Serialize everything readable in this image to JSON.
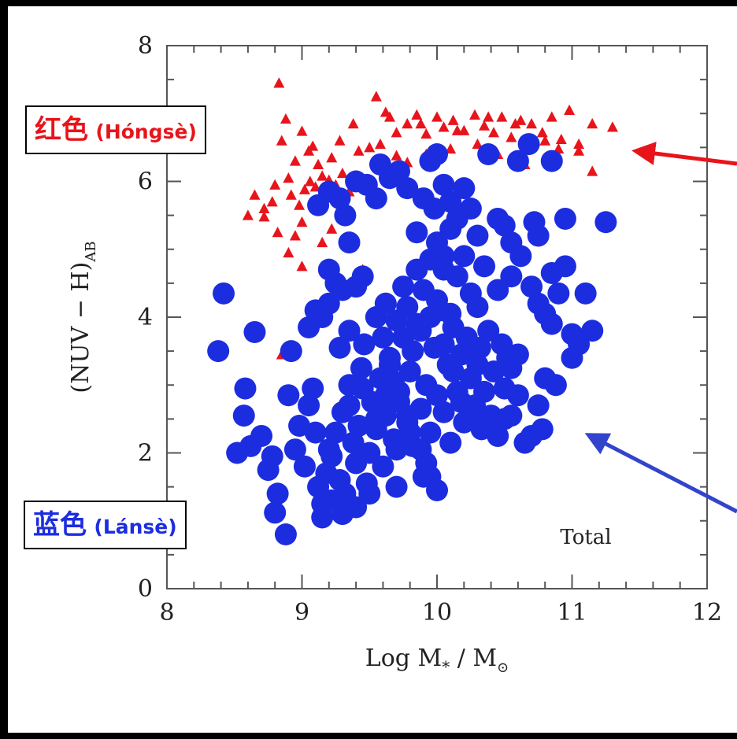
{
  "chart_data": {
    "type": "scatter",
    "xlabel_main": "Log M",
    "xlabel_sub": "*",
    "xlabel_sep": " / ",
    "xlabel_unit": "M",
    "xlabel_unit_sub": "⊙",
    "ylabel_main": "(NUV − H)",
    "ylabel_sub": "AB",
    "xlim": [
      8,
      12
    ],
    "ylim": [
      0,
      8
    ],
    "xticks": [
      "8",
      "9",
      "10",
      "11",
      "12"
    ],
    "yticks": [
      "0",
      "2",
      "4",
      "6",
      "8"
    ],
    "panel_label": "Total",
    "grid": false,
    "colors": {
      "red": "#e8141b",
      "blue": "#1c2de0"
    },
    "series": [
      {
        "marker": "triangle",
        "color": "#e8141b",
        "points": [
          [
            8.83,
            7.45
          ],
          [
            8.88,
            6.92
          ],
          [
            9.0,
            6.74
          ],
          [
            9.08,
            6.52
          ],
          [
            9.28,
            6.6
          ],
          [
            9.38,
            6.85
          ],
          [
            9.42,
            6.45
          ],
          [
            9.55,
            7.25
          ],
          [
            9.65,
            6.95
          ],
          [
            9.7,
            6.72
          ],
          [
            9.78,
            6.85
          ],
          [
            9.85,
            6.98
          ],
          [
            9.92,
            6.7
          ],
          [
            10.0,
            6.95
          ],
          [
            10.05,
            6.8
          ],
          [
            10.12,
            6.9
          ],
          [
            10.2,
            6.75
          ],
          [
            10.28,
            6.98
          ],
          [
            10.35,
            6.82
          ],
          [
            10.42,
            6.72
          ],
          [
            10.48,
            6.95
          ],
          [
            10.55,
            6.65
          ],
          [
            10.62,
            6.9
          ],
          [
            10.7,
            6.85
          ],
          [
            10.78,
            6.72
          ],
          [
            10.85,
            6.95
          ],
          [
            10.92,
            6.62
          ],
          [
            10.98,
            7.05
          ],
          [
            11.05,
            6.55
          ],
          [
            11.15,
            6.85
          ],
          [
            11.3,
            6.8
          ],
          [
            11.15,
            6.15
          ],
          [
            11.05,
            6.45
          ],
          [
            9.62,
            7.02
          ],
          [
            9.88,
            6.85
          ],
          [
            10.15,
            6.75
          ],
          [
            10.38,
            6.95
          ],
          [
            10.58,
            6.85
          ],
          [
            10.8,
            6.6
          ],
          [
            9.58,
            6.55
          ],
          [
            9.92,
            6.4
          ],
          [
            8.65,
            5.8
          ],
          [
            8.6,
            5.5
          ],
          [
            8.72,
            5.6
          ],
          [
            8.78,
            5.7
          ],
          [
            8.8,
            5.95
          ],
          [
            8.9,
            6.05
          ],
          [
            8.92,
            5.8
          ],
          [
            8.98,
            5.65
          ],
          [
            9.02,
            5.88
          ],
          [
            9.06,
            6.0
          ],
          [
            9.1,
            5.92
          ],
          [
            9.15,
            6.08
          ],
          [
            9.2,
            6.02
          ],
          [
            9.25,
            5.95
          ],
          [
            9.3,
            6.12
          ],
          [
            9.35,
            5.85
          ],
          [
            9.12,
            6.25
          ],
          [
            9.22,
            6.35
          ],
          [
            8.72,
            5.48
          ],
          [
            8.82,
            5.25
          ],
          [
            8.95,
            5.2
          ],
          [
            9.0,
            5.4
          ],
          [
            9.15,
            5.1
          ],
          [
            9.22,
            5.3
          ],
          [
            8.9,
            4.95
          ],
          [
            9.0,
            4.75
          ],
          [
            9.45,
            4.7
          ],
          [
            9.4,
            4.45
          ],
          [
            8.95,
            6.3
          ],
          [
            8.85,
            6.6
          ],
          [
            9.05,
            6.45
          ],
          [
            9.5,
            6.5
          ],
          [
            9.7,
            6.38
          ],
          [
            9.78,
            6.28
          ],
          [
            10.1,
            6.48
          ],
          [
            10.3,
            6.55
          ],
          [
            10.45,
            6.4
          ],
          [
            10.65,
            6.25
          ],
          [
            10.9,
            6.48
          ],
          [
            8.85,
            3.45
          ]
        ]
      },
      {
        "marker": "circle",
        "color": "#1c2de0",
        "points": [
          [
            8.42,
            4.35
          ],
          [
            8.38,
            3.5
          ],
          [
            8.65,
            3.78
          ],
          [
            8.58,
            2.95
          ],
          [
            8.57,
            2.55
          ],
          [
            8.52,
            2.0
          ],
          [
            8.62,
            2.1
          ],
          [
            8.7,
            2.25
          ],
          [
            8.78,
            1.95
          ],
          [
            8.75,
            1.75
          ],
          [
            8.82,
            1.4
          ],
          [
            8.8,
            1.12
          ],
          [
            8.88,
            0.8
          ],
          [
            8.9,
            2.85
          ],
          [
            8.92,
            3.5
          ],
          [
            8.95,
            2.05
          ],
          [
            8.98,
            2.4
          ],
          [
            9.02,
            1.8
          ],
          [
            9.05,
            2.7
          ],
          [
            9.08,
            2.95
          ],
          [
            9.1,
            2.3
          ],
          [
            9.12,
            1.5
          ],
          [
            9.15,
            1.25
          ],
          [
            9.18,
            1.7
          ],
          [
            9.2,
            2.05
          ],
          [
            9.22,
            1.95
          ],
          [
            9.25,
            2.3
          ],
          [
            9.28,
            1.6
          ],
          [
            9.3,
            2.6
          ],
          [
            9.32,
            1.4
          ],
          [
            9.35,
            3.0
          ],
          [
            9.38,
            2.15
          ],
          [
            9.4,
            1.85
          ],
          [
            9.42,
            2.4
          ],
          [
            9.44,
            3.25
          ],
          [
            9.46,
            3.6
          ],
          [
            9.48,
            1.55
          ],
          [
            9.5,
            2.0
          ],
          [
            9.52,
            2.75
          ],
          [
            9.55,
            2.35
          ],
          [
            9.58,
            3.1
          ],
          [
            9.6,
            1.8
          ],
          [
            9.62,
            2.55
          ],
          [
            9.65,
            3.4
          ],
          [
            9.68,
            2.2
          ],
          [
            9.7,
            1.5
          ],
          [
            9.72,
            2.9
          ],
          [
            9.75,
            3.7
          ],
          [
            9.78,
            2.45
          ],
          [
            9.8,
            3.2
          ],
          [
            9.82,
            2.1
          ],
          [
            9.85,
            3.9
          ],
          [
            9.88,
            2.65
          ],
          [
            9.9,
            1.65
          ],
          [
            9.92,
            3.0
          ],
          [
            9.95,
            2.3
          ],
          [
            9.98,
            3.55
          ],
          [
            10.0,
            2.85
          ],
          [
            10.02,
            4.1
          ],
          [
            10.05,
            2.6
          ],
          [
            10.08,
            3.3
          ],
          [
            10.1,
            2.15
          ],
          [
            10.12,
            3.85
          ],
          [
            10.15,
            2.9
          ],
          [
            10.18,
            3.45
          ],
          [
            10.2,
            2.45
          ],
          [
            10.22,
            3.7
          ],
          [
            10.25,
            3.1
          ],
          [
            10.28,
            2.7
          ],
          [
            10.3,
            3.3
          ],
          [
            10.33,
            2.35
          ],
          [
            10.35,
            2.9
          ],
          [
            10.4,
            2.55
          ],
          [
            10.42,
            3.2
          ],
          [
            10.45,
            2.25
          ],
          [
            10.48,
            3.6
          ],
          [
            10.5,
            2.5
          ],
          [
            10.52,
            3.4
          ],
          [
            10.55,
            2.55
          ],
          [
            10.6,
            2.85
          ],
          [
            9.05,
            3.85
          ],
          [
            9.1,
            4.1
          ],
          [
            9.15,
            4.0
          ],
          [
            9.2,
            4.2
          ],
          [
            9.28,
            3.55
          ],
          [
            9.35,
            3.8
          ],
          [
            9.4,
            4.45
          ],
          [
            9.45,
            4.6
          ],
          [
            9.55,
            4.0
          ],
          [
            9.62,
            4.2
          ],
          [
            9.7,
            3.95
          ],
          [
            9.75,
            4.45
          ],
          [
            9.78,
            4.15
          ],
          [
            9.85,
            4.7
          ],
          [
            9.9,
            4.4
          ],
          [
            9.95,
            4.85
          ],
          [
            10.0,
            4.25
          ],
          [
            10.05,
            4.7
          ],
          [
            10.1,
            4.05
          ],
          [
            10.15,
            4.6
          ],
          [
            10.2,
            4.9
          ],
          [
            10.25,
            4.35
          ],
          [
            10.3,
            4.15
          ],
          [
            10.35,
            4.75
          ],
          [
            10.45,
            4.4
          ],
          [
            10.55,
            4.6
          ],
          [
            10.62,
            4.9
          ],
          [
            10.7,
            4.45
          ],
          [
            10.75,
            4.2
          ],
          [
            10.8,
            4.05
          ],
          [
            10.85,
            4.65
          ],
          [
            10.9,
            4.35
          ],
          [
            10.95,
            4.75
          ],
          [
            10.85,
            3.9
          ],
          [
            11.0,
            3.75
          ],
          [
            11.1,
            4.35
          ],
          [
            11.05,
            3.6
          ],
          [
            11.0,
            3.4
          ],
          [
            10.88,
            3.0
          ],
          [
            10.8,
            3.1
          ],
          [
            10.75,
            2.7
          ],
          [
            10.78,
            2.35
          ],
          [
            10.7,
            2.25
          ],
          [
            10.65,
            2.15
          ],
          [
            10.6,
            3.45
          ],
          [
            10.55,
            3.25
          ],
          [
            10.5,
            2.95
          ],
          [
            11.15,
            3.8
          ],
          [
            9.12,
            5.65
          ],
          [
            9.2,
            5.85
          ],
          [
            9.28,
            5.75
          ],
          [
            9.32,
            5.5
          ],
          [
            9.35,
            5.1
          ],
          [
            9.4,
            6.0
          ],
          [
            9.48,
            5.95
          ],
          [
            9.55,
            5.75
          ],
          [
            9.58,
            6.25
          ],
          [
            9.65,
            6.05
          ],
          [
            9.72,
            6.15
          ],
          [
            9.78,
            5.9
          ],
          [
            9.85,
            5.25
          ],
          [
            9.9,
            5.75
          ],
          [
            9.95,
            6.3
          ],
          [
            10.0,
            6.4
          ],
          [
            10.05,
            5.95
          ],
          [
            10.1,
            5.7
          ],
          [
            10.15,
            5.45
          ],
          [
            10.2,
            5.9
          ],
          [
            10.25,
            5.6
          ],
          [
            10.3,
            5.2
          ],
          [
            10.38,
            6.4
          ],
          [
            10.45,
            5.45
          ],
          [
            10.5,
            5.35
          ],
          [
            10.55,
            5.1
          ],
          [
            10.6,
            6.3
          ],
          [
            10.68,
            6.55
          ],
          [
            10.72,
            5.4
          ],
          [
            10.75,
            5.2
          ],
          [
            10.85,
            6.3
          ],
          [
            10.95,
            5.45
          ],
          [
            11.25,
            5.4
          ],
          [
            10.0,
            5.1
          ],
          [
            10.05,
            4.9
          ],
          [
            9.98,
            5.6
          ],
          [
            10.1,
            5.3
          ],
          [
            9.2,
            4.7
          ],
          [
            9.25,
            4.5
          ],
          [
            9.3,
            4.4
          ],
          [
            9.6,
            3.7
          ],
          [
            9.65,
            3.3
          ],
          [
            9.68,
            3.05
          ],
          [
            9.72,
            2.75
          ],
          [
            9.78,
            2.55
          ],
          [
            9.8,
            2.3
          ],
          [
            9.88,
            2.05
          ],
          [
            9.92,
            1.85
          ],
          [
            9.95,
            1.65
          ],
          [
            10.0,
            1.45
          ],
          [
            9.5,
            1.4
          ],
          [
            9.4,
            1.2
          ],
          [
            9.3,
            1.1
          ],
          [
            9.22,
            1.3
          ],
          [
            9.15,
            1.05
          ],
          [
            9.35,
            2.7
          ],
          [
            9.45,
            2.95
          ],
          [
            9.55,
            2.5
          ],
          [
            9.62,
            2.85
          ],
          [
            9.7,
            2.05
          ],
          [
            9.82,
            3.5
          ],
          [
            9.88,
            3.8
          ],
          [
            9.95,
            4.0
          ],
          [
            10.05,
            3.6
          ],
          [
            10.12,
            3.2
          ],
          [
            10.18,
            2.75
          ],
          [
            10.25,
            2.5
          ],
          [
            10.32,
            3.55
          ],
          [
            10.38,
            3.8
          ]
        ]
      }
    ],
    "annotations": [
      {
        "label_han": "红色",
        "label_roman": "(Hóngsè)",
        "color": "#e8141b",
        "target": [
          11.4,
          6.45
        ]
      },
      {
        "label_han": "蓝色",
        "label_roman": "(Lánsè)",
        "color": "#1c2de0",
        "target": [
          11.1,
          2.3
        ]
      }
    ]
  }
}
